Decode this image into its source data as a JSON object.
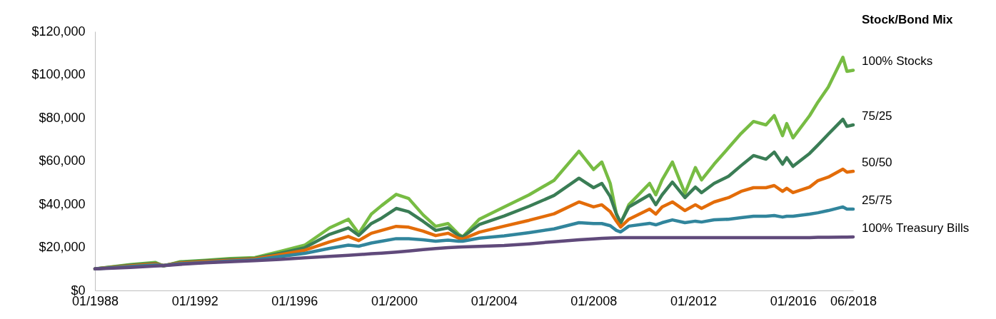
{
  "chart_data": {
    "type": "line",
    "legend_title": "Stock/Bond Mix",
    "legend": "right",
    "grid": false,
    "marker": "none",
    "line_style": "solid",
    "x": [
      "1988-01",
      "1989-06",
      "1990-06",
      "1990-10",
      "1991-06",
      "1992-06",
      "1993-06",
      "1994-06",
      "1995-06",
      "1996-06",
      "1997-06",
      "1998-03",
      "1998-08",
      "1999-02",
      "1999-07",
      "2000-02",
      "2000-08",
      "2001-03",
      "2001-09",
      "2002-03",
      "2002-08",
      "2002-10",
      "2003-06",
      "2004-06",
      "2005-06",
      "2006-06",
      "2007-06",
      "2008-01",
      "2008-05",
      "2008-09",
      "2008-12",
      "2009-02",
      "2009-06",
      "2010-04",
      "2010-07",
      "2010-10",
      "2011-03",
      "2011-09",
      "2012-02",
      "2012-05",
      "2012-11",
      "2013-06",
      "2013-12",
      "2014-06",
      "2014-12",
      "2015-04",
      "2015-08",
      "2015-10",
      "2016-01",
      "2016-09",
      "2017-01",
      "2017-06",
      "2018-01",
      "2018-03",
      "2018-06"
    ],
    "xlim": [
      "1988-01",
      "2018-06"
    ],
    "xticks": [
      {
        "value": "1988-01",
        "label": "01/1988"
      },
      {
        "value": "1992-01",
        "label": "01/1992"
      },
      {
        "value": "1996-01",
        "label": "01/1996"
      },
      {
        "value": "2000-01",
        "label": "01/2000"
      },
      {
        "value": "2004-01",
        "label": "01/2004"
      },
      {
        "value": "2008-01",
        "label": "01/2008"
      },
      {
        "value": "2012-01",
        "label": "01/2012"
      },
      {
        "value": "2016-01",
        "label": "01/2016"
      },
      {
        "value": "2018-06",
        "label": "06/2018"
      }
    ],
    "ylim": [
      0,
      120000
    ],
    "yticks": [
      {
        "value": 0,
        "label": "$0"
      },
      {
        "value": 20000,
        "label": "$20,000"
      },
      {
        "value": 40000,
        "label": "$40,000"
      },
      {
        "value": 60000,
        "label": "$60,000"
      },
      {
        "value": 80000,
        "label": "$80,000"
      },
      {
        "value": 100000,
        "label": "$100,000"
      },
      {
        "value": 120000,
        "label": "$120,000"
      }
    ],
    "series": [
      {
        "name": "100% Stocks",
        "color": "#77bc43",
        "values": [
          10000,
          12000,
          13000,
          11300,
          13300,
          14000,
          14800,
          15200,
          18000,
          21000,
          29000,
          33000,
          26400,
          35400,
          39300,
          44500,
          42600,
          35000,
          29700,
          31000,
          26100,
          24800,
          33000,
          38700,
          44300,
          51000,
          64500,
          56000,
          59500,
          49600,
          35400,
          31000,
          39700,
          49600,
          44300,
          51200,
          59500,
          45000,
          56900,
          51200,
          58500,
          66100,
          72700,
          78300,
          76700,
          81000,
          71700,
          77300,
          70700,
          81000,
          87300,
          94200,
          108000,
          101500,
          102000
        ]
      },
      {
        "name": "75/25",
        "color": "#3a7d55",
        "values": [
          10000,
          11700,
          12600,
          11500,
          13000,
          13700,
          14400,
          14900,
          17200,
          19800,
          26000,
          29000,
          25500,
          31000,
          33500,
          38000,
          36500,
          32000,
          27800,
          29000,
          25500,
          24800,
          30500,
          34500,
          39000,
          44000,
          52000,
          47600,
          49600,
          43500,
          35400,
          31400,
          38700,
          44300,
          39700,
          44300,
          50200,
          43000,
          47900,
          45300,
          49600,
          52900,
          57800,
          62500,
          60800,
          64100,
          58500,
          61500,
          57500,
          63500,
          67400,
          72400,
          79300,
          76000,
          76700
        ]
      },
      {
        "name": "50/50",
        "color": "#e36c09",
        "values": [
          10000,
          11400,
          12200,
          11600,
          12700,
          13400,
          14000,
          14600,
          16500,
          18600,
          22500,
          25000,
          23100,
          26500,
          27800,
          29700,
          29300,
          27500,
          25400,
          26500,
          24200,
          23800,
          27000,
          29800,
          32500,
          35500,
          41000,
          38700,
          39700,
          36500,
          32100,
          29400,
          33000,
          37700,
          35400,
          38700,
          41000,
          37000,
          39700,
          38000,
          41000,
          43000,
          45900,
          47600,
          47600,
          48600,
          45900,
          47300,
          45300,
          47900,
          50900,
          52500,
          56200,
          54800,
          55200
        ]
      },
      {
        "name": "25/75",
        "color": "#31859c",
        "values": [
          10000,
          11100,
          11800,
          11600,
          12400,
          13000,
          13600,
          14200,
          15700,
          17200,
          19500,
          21000,
          20500,
          22000,
          22800,
          24000,
          24000,
          23500,
          22800,
          23300,
          22800,
          22800,
          24200,
          25300,
          26800,
          28500,
          31400,
          31000,
          31000,
          30000,
          27800,
          27100,
          29800,
          31100,
          30400,
          31400,
          32700,
          31400,
          32100,
          31700,
          32700,
          33000,
          33700,
          34400,
          34400,
          34700,
          34000,
          34400,
          34400,
          35400,
          36000,
          37000,
          38700,
          37700,
          37700
        ]
      },
      {
        "name": "100% Treasury Bills",
        "color": "#604a7b",
        "values": [
          10000,
          10700,
          11300,
          11500,
          12100,
          12800,
          13300,
          13800,
          14400,
          15100,
          15800,
          16300,
          16600,
          17000,
          17300,
          17800,
          18300,
          18900,
          19400,
          19800,
          20100,
          20200,
          20400,
          20800,
          21600,
          22600,
          23500,
          23900,
          24100,
          24300,
          24400,
          24500,
          24500,
          24500,
          24500,
          24500,
          24500,
          24500,
          24500,
          24500,
          24500,
          24500,
          24500,
          24500,
          24500,
          24500,
          24500,
          24500,
          24500,
          24500,
          24600,
          24600,
          24700,
          24700,
          24800
        ]
      }
    ]
  }
}
